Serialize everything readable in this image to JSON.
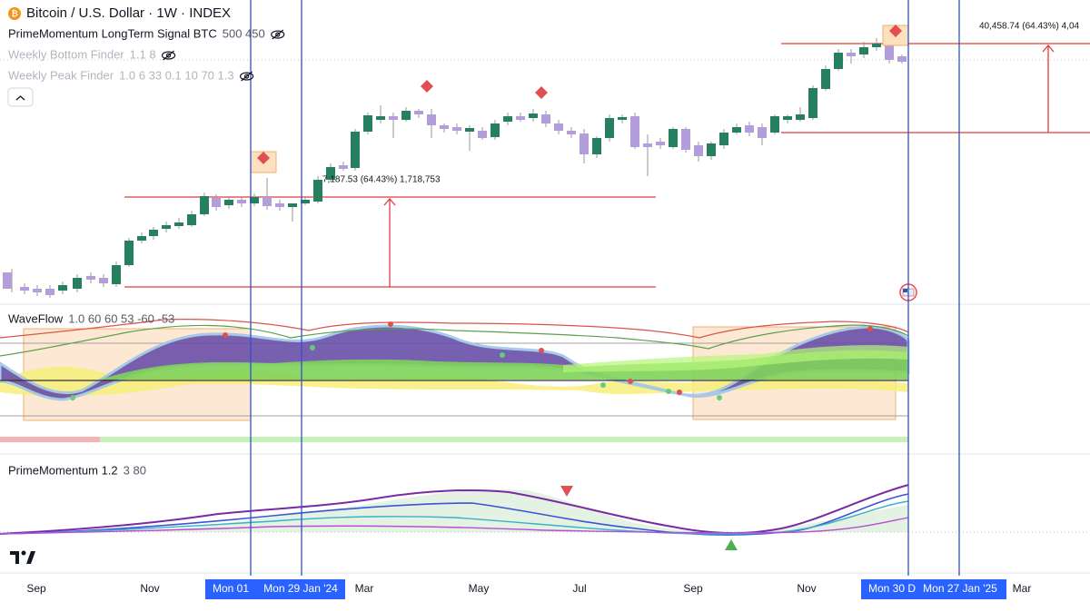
{
  "header": {
    "title": "Bitcoin / U.S. Dollar · 1W · INDEX"
  },
  "indicators": [
    {
      "name": "PrimeMomentum LongTerm Signal BTC",
      "params": "500 450"
    },
    {
      "name": "Weekly Bottom Finder",
      "params": "1.1 8"
    },
    {
      "name": "Weekly Peak Finder",
      "params": "1.0 6 33 0.1 10 70 1.3"
    }
  ],
  "annotations": [
    "7,187.53 (64.43%) 1,718,753",
    "40,458.74 (64.43%) 4,04"
  ],
  "panes": [
    {
      "name": "WaveFlow",
      "params": "1.0 60 60 53 -60 -53"
    },
    {
      "name": "PrimeMomentum 1.2",
      "params": "3 80"
    }
  ],
  "time_axis": {
    "labels": [
      "Sep",
      "Nov",
      "Mar",
      "May",
      "Jul",
      "Sep",
      "Nov",
      "Mar"
    ],
    "cursors": [
      "Mon 01",
      "Mon 29 Jan '24",
      "Mon 30 D",
      "Mon 27 Jan '25"
    ]
  }
}
